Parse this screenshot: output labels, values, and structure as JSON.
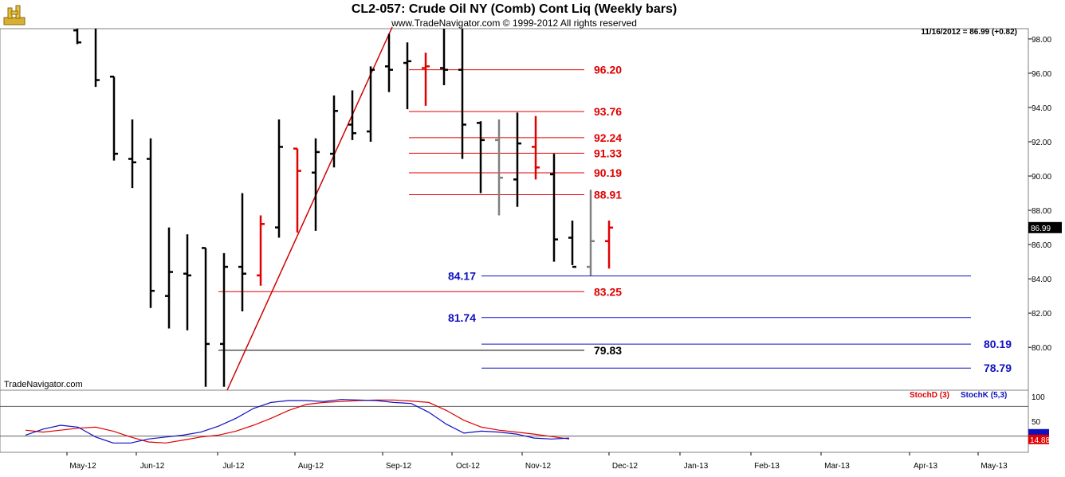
{
  "header": {
    "title": "CL2-057:  Crude Oil NY (Comb) Cont Liq  (Weekly bars)",
    "copyright": "www.TradeNavigator.com © 1999-2012 All rights reserved",
    "quote": "11/16/2012 = 86.99 (+0.82)",
    "brand": "TradeNavigator.com"
  },
  "chart_data": [
    {
      "type": "ohlc",
      "title": "CL2-057:  Crude Oil NY (Comb) Cont Liq  (Weekly bars)",
      "ylim": [
        77.5,
        98.6
      ],
      "y_ticks": [
        "98.00",
        "96.00",
        "94.00",
        "92.00",
        "90.00",
        "88.00",
        "86.00",
        "84.00",
        "82.00",
        "80.00"
      ],
      "last_price": "86.99",
      "x_labels": [
        "May-12",
        "Jun-12",
        "Jul-12",
        "Aug-12",
        "Sep-12",
        "Oct-12",
        "Nov-12",
        "Dec-12",
        "Jan-13",
        "Feb-13",
        "Mar-13",
        "Apr-13",
        "May-13"
      ],
      "bars": [
        {
          "o": 98.5,
          "h": 99.5,
          "l": 97.7,
          "c": 97.8,
          "color": "black"
        },
        {
          "o": 99.0,
          "h": 99.5,
          "l": 95.2,
          "c": 95.6,
          "color": "black"
        },
        {
          "o": 95.8,
          "h": 95.8,
          "l": 90.9,
          "c": 91.3,
          "color": "black"
        },
        {
          "o": 91.0,
          "h": 93.3,
          "l": 89.3,
          "c": 90.8,
          "color": "black"
        },
        {
          "o": 91.0,
          "h": 92.2,
          "l": 82.3,
          "c": 83.3,
          "color": "black"
        },
        {
          "o": 83.0,
          "h": 87.0,
          "l": 81.1,
          "c": 84.4,
          "color": "black"
        },
        {
          "o": 84.3,
          "h": 86.6,
          "l": 81.0,
          "c": 84.2,
          "color": "black"
        },
        {
          "o": 85.8,
          "h": 85.8,
          "l": 77.7,
          "c": 80.2,
          "color": "black"
        },
        {
          "o": 80.2,
          "h": 85.5,
          "l": 77.7,
          "c": 84.7,
          "color": "black"
        },
        {
          "o": 84.7,
          "h": 89.0,
          "l": 82.1,
          "c": 84.3,
          "color": "black"
        },
        {
          "o": 84.2,
          "h": 87.7,
          "l": 83.6,
          "c": 87.2,
          "color": "red"
        },
        {
          "o": 87.0,
          "h": 93.3,
          "l": 86.4,
          "c": 91.7,
          "color": "black"
        },
        {
          "o": 91.6,
          "h": 91.6,
          "l": 86.7,
          "c": 90.3,
          "color": "red"
        },
        {
          "o": 90.2,
          "h": 92.2,
          "l": 86.8,
          "c": 91.4,
          "color": "black"
        },
        {
          "o": 91.3,
          "h": 94.7,
          "l": 90.5,
          "c": 93.8,
          "color": "black"
        },
        {
          "o": 93.0,
          "h": 95.0,
          "l": 92.1,
          "c": 92.5,
          "color": "black"
        },
        {
          "o": 92.6,
          "h": 96.4,
          "l": 92.0,
          "c": 96.2,
          "color": "black"
        },
        {
          "o": 96.4,
          "h": 98.3,
          "l": 94.9,
          "c": 96.2,
          "color": "black"
        },
        {
          "o": 96.6,
          "h": 97.8,
          "l": 93.9,
          "c": 96.7,
          "color": "black"
        },
        {
          "o": 96.3,
          "h": 97.2,
          "l": 94.1,
          "c": 96.4,
          "color": "red"
        },
        {
          "o": 96.3,
          "h": 98.6,
          "l": 95.3,
          "c": 96.2,
          "color": "black"
        },
        {
          "o": 96.2,
          "h": 99.0,
          "l": 91.0,
          "c": 93.0,
          "color": "black"
        },
        {
          "o": 93.1,
          "h": 93.2,
          "l": 89.0,
          "c": 92.1,
          "color": "black"
        },
        {
          "o": 92.1,
          "h": 93.3,
          "l": 87.7,
          "c": 89.9,
          "color": "gray"
        },
        {
          "o": 89.8,
          "h": 93.7,
          "l": 88.2,
          "c": 91.9,
          "color": "black"
        },
        {
          "o": 91.7,
          "h": 93.5,
          "l": 89.8,
          "c": 90.5,
          "color": "red"
        },
        {
          "o": 90.1,
          "h": 91.3,
          "l": 85.0,
          "c": 86.3,
          "color": "black"
        },
        {
          "o": 86.4,
          "h": 87.4,
          "l": 84.8,
          "c": 84.7,
          "color": "black"
        },
        {
          "o": 84.7,
          "h": 89.2,
          "l": 84.2,
          "c": 86.2,
          "color": "gray"
        },
        {
          "o": 86.2,
          "h": 87.4,
          "l": 84.6,
          "c": 86.99,
          "color": "red"
        }
      ],
      "levels": [
        {
          "value": 96.2,
          "label": "96.20",
          "color": "#e00000"
        },
        {
          "value": 93.76,
          "label": "93.76",
          "color": "#e00000"
        },
        {
          "value": 92.24,
          "label": "92.24",
          "color": "#e00000"
        },
        {
          "value": 91.33,
          "label": "91.33",
          "color": "#e00000"
        },
        {
          "value": 90.19,
          "label": "90.19",
          "color": "#e00000"
        },
        {
          "value": 88.91,
          "label": "88.91",
          "color": "#e00000"
        },
        {
          "value": 84.17,
          "label": "84.17",
          "color": "#1010c0"
        },
        {
          "value": 83.25,
          "label": "83.25",
          "color": "#e00000"
        },
        {
          "value": 81.74,
          "label": "81.74",
          "color": "#1010c0"
        },
        {
          "value": 80.19,
          "label": "80.19",
          "color": "#1010c0"
        },
        {
          "value": 79.83,
          "label": "79.83",
          "color": "#000000"
        },
        {
          "value": 78.79,
          "label": "78.79",
          "color": "#1010c0"
        }
      ]
    },
    {
      "type": "line",
      "ylim": [
        0,
        100
      ],
      "y_ticks": [
        "100",
        "50"
      ],
      "last_value": "14.88",
      "series": [
        {
          "name": "StochD (3)",
          "color": "#e00000",
          "values": [
            32,
            28,
            32,
            36,
            38,
            30,
            18,
            8,
            6,
            12,
            18,
            22,
            30,
            42,
            56,
            72,
            84,
            88,
            90,
            92,
            93,
            93,
            91,
            88,
            72,
            52,
            38,
            32,
            28,
            24,
            19,
            14
          ]
        },
        {
          "name": "StochK (5,3)",
          "color": "#1010c0",
          "values": [
            22,
            34,
            42,
            38,
            18,
            6,
            6,
            14,
            18,
            22,
            28,
            40,
            56,
            76,
            88,
            92,
            92,
            90,
            94,
            93,
            92,
            88,
            86,
            68,
            44,
            26,
            30,
            28,
            24,
            16,
            14,
            16
          ]
        }
      ],
      "reference_lines": [
        80,
        20
      ]
    }
  ],
  "colors": {
    "trendline": "#d00000",
    "axis_text": "#000000",
    "grid": "#d8d8d8"
  }
}
